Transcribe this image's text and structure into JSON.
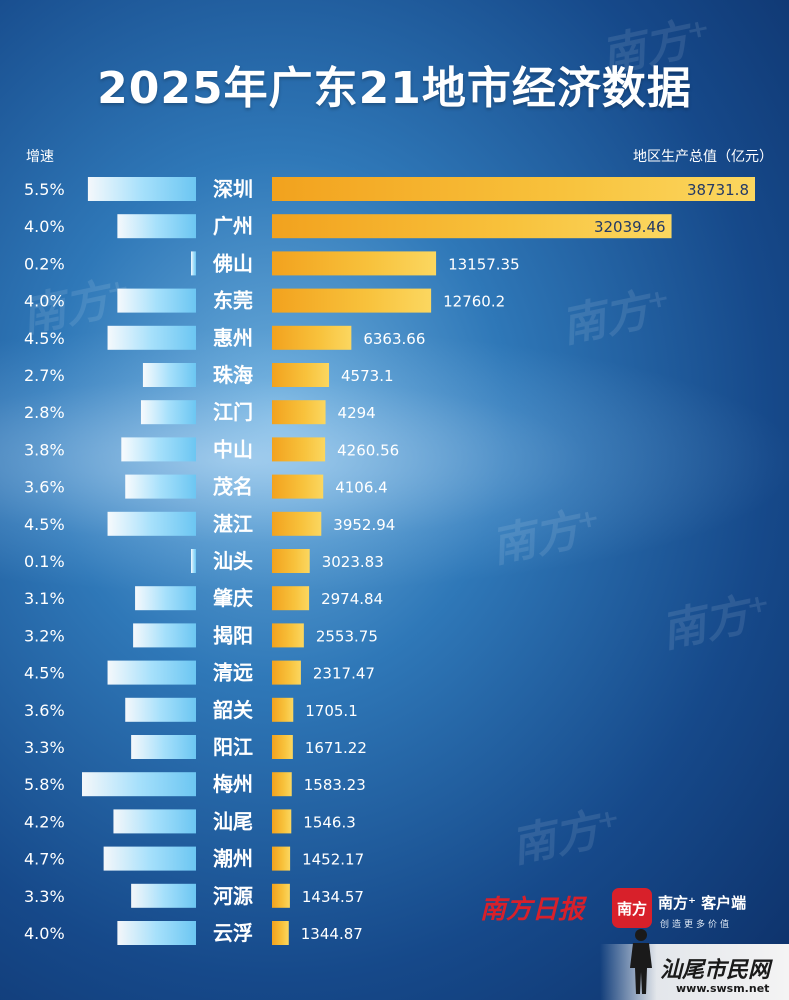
{
  "title": "2025年广东21地市经济数据",
  "header": {
    "growth_label": "增速",
    "gdp_label": "地区生产总值（亿元）"
  },
  "colors": {
    "gdp_bar": "#f6b52e",
    "gdp_bar_light": "#fbd15a",
    "growth_bar": "#7ccff5",
    "text": "#ffffff",
    "value_inside": "#243a66"
  },
  "chart_data": {
    "type": "bar",
    "title": "2025年广东21地市经济数据",
    "categories": [
      "深圳",
      "广州",
      "佛山",
      "东莞",
      "惠州",
      "珠海",
      "江门",
      "中山",
      "茂名",
      "湛江",
      "汕头",
      "肇庆",
      "揭阳",
      "清远",
      "韶关",
      "阳江",
      "梅州",
      "汕尾",
      "潮州",
      "河源",
      "云浮"
    ],
    "series": [
      {
        "name": "地区生产总值（亿元）",
        "values": [
          38731.8,
          32039.46,
          13157.35,
          12760.2,
          6363.66,
          4573.1,
          4294,
          4260.56,
          4106.4,
          3952.94,
          3023.83,
          2974.84,
          2553.75,
          2317.47,
          1705.1,
          1671.22,
          1583.23,
          1546.3,
          1452.17,
          1434.57,
          1344.87
        ],
        "labels": [
          "38731.8",
          "32039.46",
          "13157.35",
          "12760.2",
          "6363.66",
          "4573.1",
          "4294",
          "4260.56",
          "4106.4",
          "3952.94",
          "3023.83",
          "2974.84",
          "2553.75",
          "2317.47",
          "1705.1",
          "1671.22",
          "1583.23",
          "1546.3",
          "1452.17",
          "1434.57",
          "1344.87"
        ]
      },
      {
        "name": "增速",
        "values": [
          5.5,
          4.0,
          0.2,
          4.0,
          4.5,
          2.7,
          2.8,
          3.8,
          3.6,
          4.5,
          0.1,
          3.1,
          3.2,
          4.5,
          3.6,
          3.3,
          5.8,
          4.2,
          4.7,
          3.3,
          4.0
        ],
        "labels": [
          "5.5%",
          "4.0%",
          "0.2%",
          "4.0%",
          "4.5%",
          "2.7%",
          "2.8%",
          "3.8%",
          "3.6%",
          "4.5%",
          "0.1%",
          "3.1%",
          "3.2%",
          "4.5%",
          "3.6%",
          "3.3%",
          "5.8%",
          "4.2%",
          "4.7%",
          "3.3%",
          "4.0%"
        ]
      }
    ],
    "xlabel": "",
    "ylabel": "",
    "ylim": [
      0,
      40000
    ],
    "growth_lim": [
      0,
      6
    ],
    "grid": false,
    "legend": "none"
  },
  "branding": {
    "nanfang_daily": "南方日报",
    "app_box": "南方",
    "app_name": "南方⁺ 客户端",
    "app_slogan": "创造更多价值",
    "site_name": "汕尾市民网",
    "site_url": "www.swsm.net",
    "watermark": "南方⁺"
  }
}
